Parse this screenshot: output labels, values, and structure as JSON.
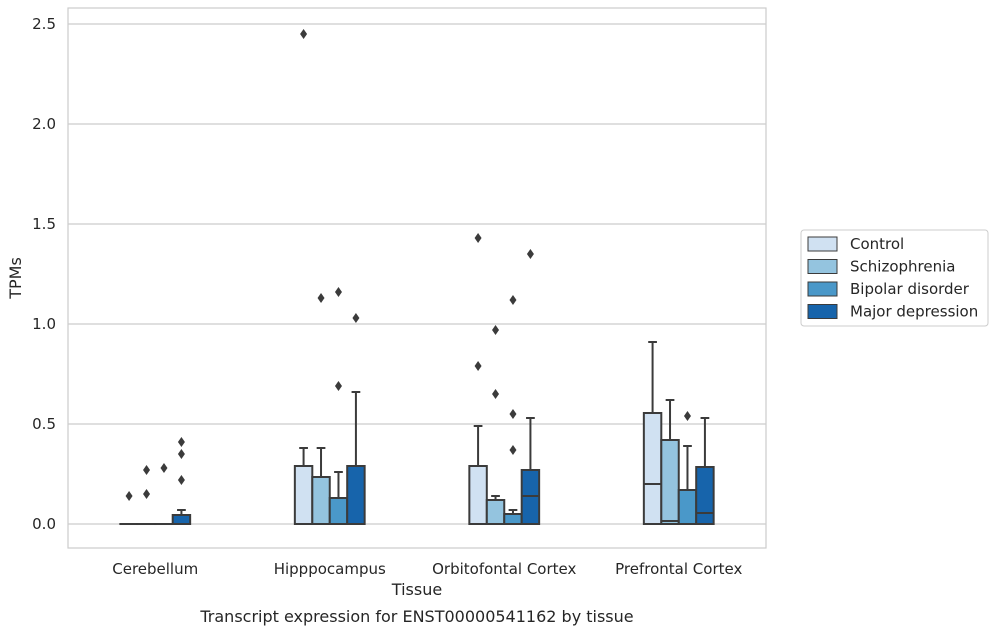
{
  "chart_data": {
    "type": "box",
    "title": "",
    "caption": "Transcript expression for ENST00000541162 by tissue",
    "xlabel": "Tissue",
    "ylabel": "TPMs",
    "ylim": [
      -0.12,
      2.58
    ],
    "yticks": [
      0.0,
      0.5,
      1.0,
      1.5,
      2.0,
      2.5
    ],
    "ytick_labels": [
      "0.0",
      "0.5",
      "1.0",
      "1.5",
      "2.0",
      "2.5"
    ],
    "grid": "horizontal",
    "legend_position": "right",
    "categories": [
      "Cerebellum",
      "Hipppocampus",
      "Orbitofontal Cortex",
      "Prefrontal Cortex"
    ],
    "series": [
      {
        "name": "Control",
        "color": "#d0e1f2",
        "boxes": [
          {
            "q1": 0.0,
            "median": 0.0,
            "q3": 0.0,
            "whisker_low": 0.0,
            "whisker_high": 0.0,
            "outliers": [
              0.14
            ]
          },
          {
            "q1": 0.0,
            "median": 0.0,
            "q3": 0.29,
            "whisker_low": 0.0,
            "whisker_high": 0.38,
            "outliers": [
              2.45
            ]
          },
          {
            "q1": 0.0,
            "median": 0.0,
            "q3": 0.29,
            "whisker_low": 0.0,
            "whisker_high": 0.49,
            "outliers": [
              0.79,
              1.43
            ]
          },
          {
            "q1": 0.0,
            "median": 0.2,
            "q3": 0.555,
            "whisker_low": 0.0,
            "whisker_high": 0.91,
            "outliers": []
          }
        ]
      },
      {
        "name": "Schizophrenia",
        "color": "#94c4df",
        "boxes": [
          {
            "q1": 0.0,
            "median": 0.0,
            "q3": 0.0,
            "whisker_low": 0.0,
            "whisker_high": 0.0,
            "outliers": [
              0.15,
              0.27
            ]
          },
          {
            "q1": 0.0,
            "median": 0.0,
            "q3": 0.235,
            "whisker_low": 0.0,
            "whisker_high": 0.38,
            "outliers": [
              1.13
            ]
          },
          {
            "q1": 0.0,
            "median": 0.0,
            "q3": 0.12,
            "whisker_low": 0.0,
            "whisker_high": 0.14,
            "outliers": [
              0.65,
              0.97
            ]
          },
          {
            "q1": 0.0,
            "median": 0.015,
            "q3": 0.42,
            "whisker_low": 0.0,
            "whisker_high": 0.62,
            "outliers": []
          }
        ]
      },
      {
        "name": "Bipolar disorder",
        "color": "#4a98c9",
        "boxes": [
          {
            "q1": 0.0,
            "median": 0.0,
            "q3": 0.0,
            "whisker_low": 0.0,
            "whisker_high": 0.0,
            "outliers": [
              0.28
            ]
          },
          {
            "q1": 0.0,
            "median": 0.0,
            "q3": 0.13,
            "whisker_low": 0.0,
            "whisker_high": 0.26,
            "outliers": [
              0.69,
              1.16
            ]
          },
          {
            "q1": 0.0,
            "median": 0.0,
            "q3": 0.05,
            "whisker_low": 0.0,
            "whisker_high": 0.07,
            "outliers": [
              0.37,
              0.55,
              1.12
            ]
          },
          {
            "q1": 0.0,
            "median": 0.0,
            "q3": 0.17,
            "whisker_low": 0.0,
            "whisker_high": 0.39,
            "outliers": [
              0.54
            ]
          }
        ]
      },
      {
        "name": "Major depression",
        "color": "#1764ab",
        "boxes": [
          {
            "q1": 0.0,
            "median": 0.0,
            "q3": 0.045,
            "whisker_low": 0.0,
            "whisker_high": 0.07,
            "outliers": [
              0.22,
              0.35,
              0.41
            ]
          },
          {
            "q1": 0.0,
            "median": 0.0,
            "q3": 0.29,
            "whisker_low": 0.0,
            "whisker_high": 0.66,
            "outliers": [
              1.03
            ]
          },
          {
            "q1": 0.0,
            "median": 0.14,
            "q3": 0.27,
            "whisker_low": 0.0,
            "whisker_high": 0.53,
            "outliers": [
              1.35
            ]
          },
          {
            "q1": 0.0,
            "median": 0.055,
            "q3": 0.285,
            "whisker_low": 0.0,
            "whisker_high": 0.53,
            "outliers": []
          }
        ]
      }
    ]
  }
}
